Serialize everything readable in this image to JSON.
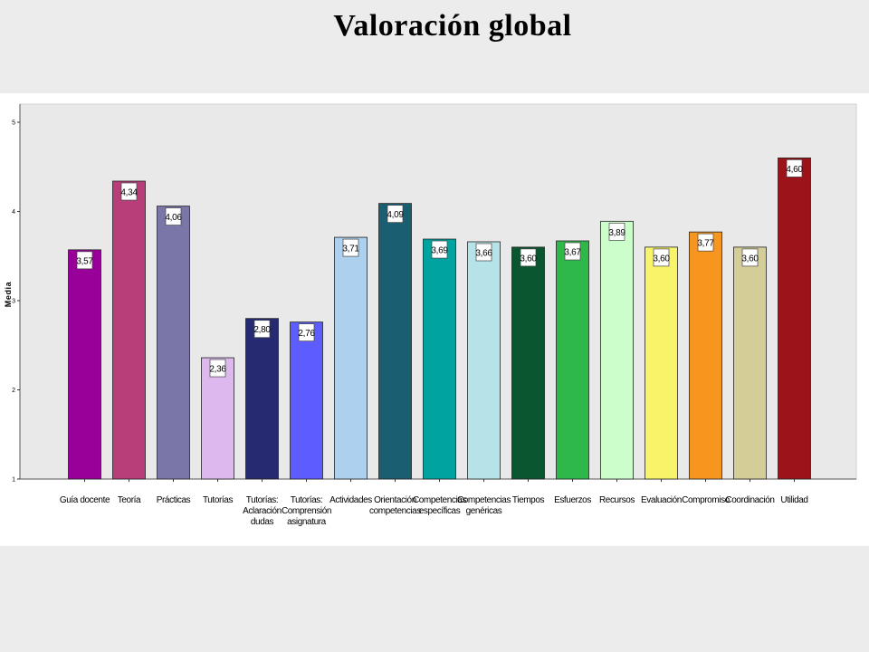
{
  "page": {
    "title": "Valoración global"
  },
  "chart_data": {
    "type": "bar",
    "title": "",
    "xlabel": "",
    "ylabel": "Media",
    "ylim": [
      1,
      5
    ],
    "yticks": [
      "1",
      "2",
      "3",
      "4",
      "5"
    ],
    "grid": false,
    "legend": "none",
    "categories": [
      "Guía docente",
      "Teoría",
      "Prácticas",
      "Tutorías",
      "Tutorías: Aclaración dudas",
      "Tutorías: Comprensión asignatura",
      "Actividades",
      "Orientación competencias",
      "Competencias específicas",
      "Competencias genéricas",
      "Tiempos",
      "Esfuerzos",
      "Recursos",
      "Evaluación",
      "Compromiso",
      "Coordinación",
      "Utilidad"
    ],
    "category_lines": [
      [
        "Guía docente"
      ],
      [
        "Teoría"
      ],
      [
        "Prácticas"
      ],
      [
        "Tutorías"
      ],
      [
        "Tutorías:",
        "Aclaración",
        "dudas"
      ],
      [
        "Tutorías:",
        "Comprensión",
        "asignatura"
      ],
      [
        "Actividades"
      ],
      [
        "Orientación",
        "competencias"
      ],
      [
        "Competencias",
        "específicas"
      ],
      [
        "Competencias",
        "genéricas"
      ],
      [
        "Tiempos"
      ],
      [
        "Esfuerzos"
      ],
      [
        "Recursos"
      ],
      [
        "Evaluación"
      ],
      [
        "Compromiso"
      ],
      [
        "Coordinación"
      ],
      [
        "Utilidad"
      ]
    ],
    "values": [
      3.57,
      4.34,
      4.06,
      2.36,
      2.8,
      2.76,
      3.71,
      4.09,
      3.69,
      3.66,
      3.6,
      3.67,
      3.89,
      3.6,
      3.77,
      3.6,
      4.6
    ],
    "value_labels": [
      "3,57",
      "4,34",
      "4,06",
      "2,36",
      "2,80",
      "2,76",
      "3,71",
      "4,09",
      "3,69",
      "3,66",
      "3,60",
      "3,67",
      "3,89",
      "3,60",
      "3,77",
      "3,60",
      "4,60"
    ],
    "colors": [
      "#990099",
      "#b83e7a",
      "#7a77a8",
      "#dcb8ef",
      "#262a70",
      "#5c5cff",
      "#acd0ee",
      "#1a5e72",
      "#00a39f",
      "#b5e3e8",
      "#0a5630",
      "#2eb84a",
      "#ccfecc",
      "#f8f46a",
      "#f7961f",
      "#d4cd98",
      "#9c1419"
    ],
    "plot_background": "#e9e9e9"
  }
}
